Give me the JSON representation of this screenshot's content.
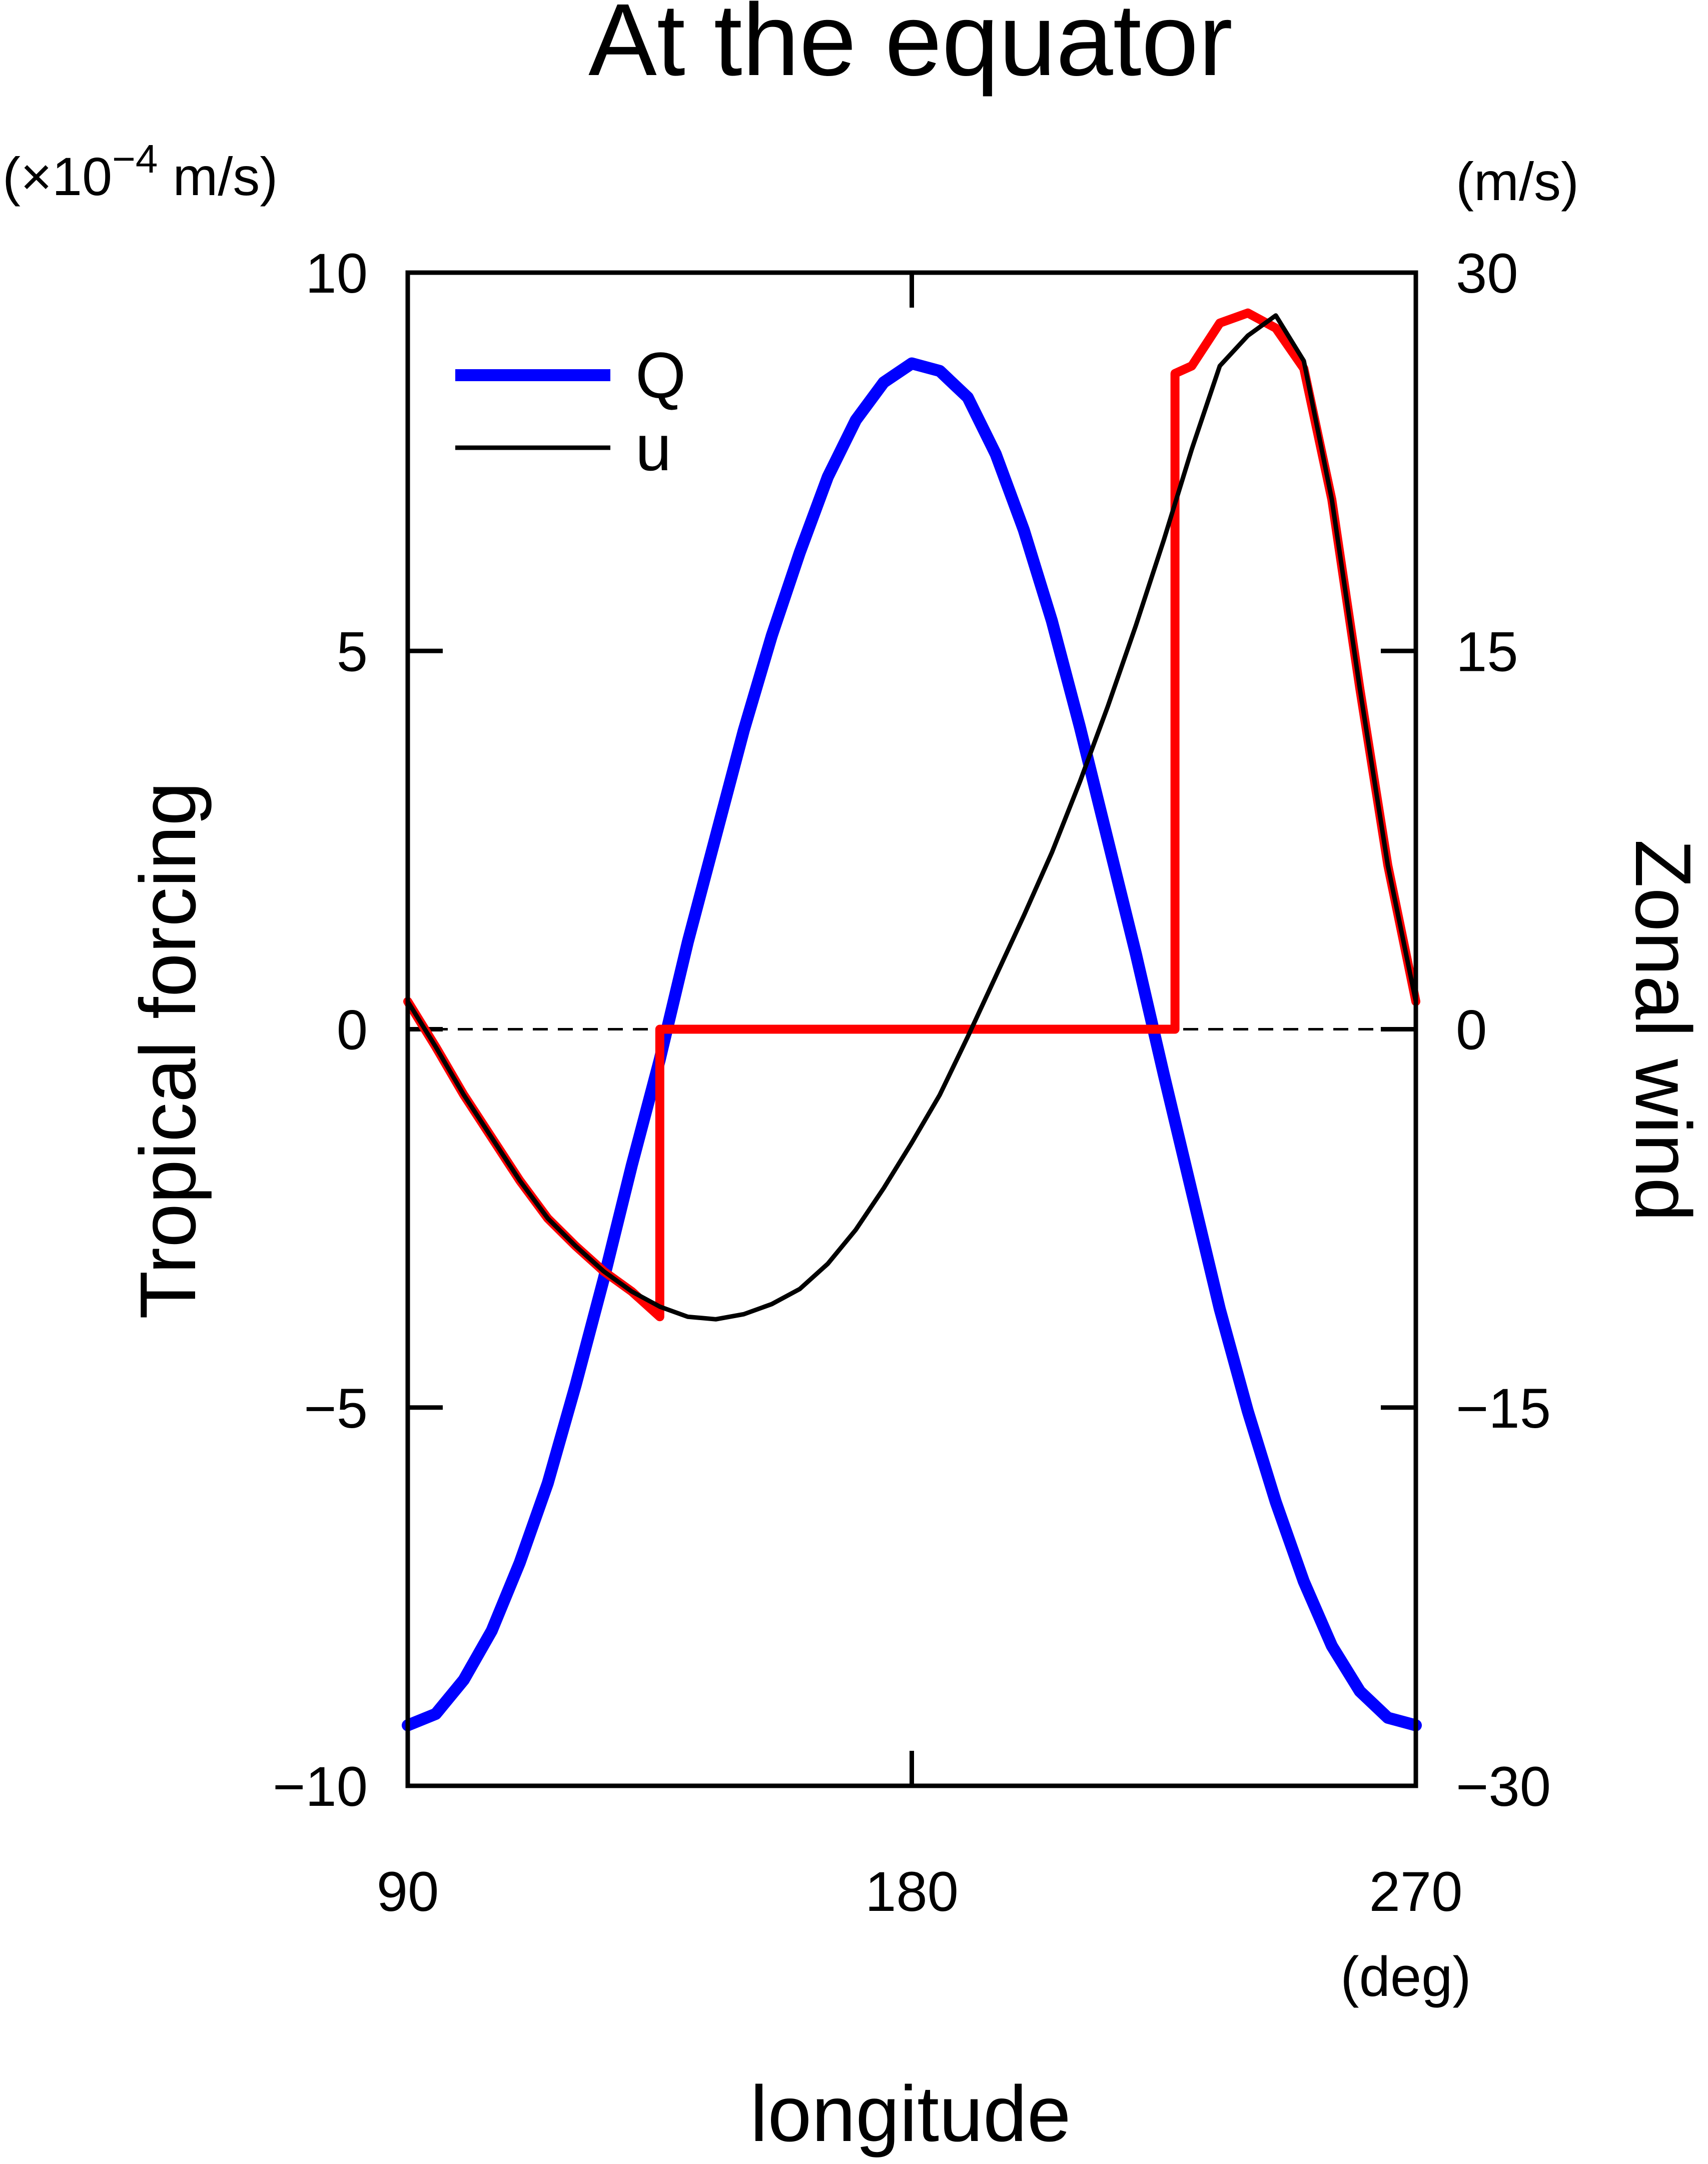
{
  "chart_data": {
    "type": "line",
    "title": "At the equator",
    "xlabel": "longitude",
    "x_unit": "(deg)",
    "ylabel_left": "Tropical forcing",
    "ylabel_right": "Zonal wind",
    "unit_left_prefix": "(×10",
    "unit_left_exp": "−4",
    "unit_left_suffix": " m/s)",
    "unit_right": "(m/s)",
    "xlim": [
      90,
      270
    ],
    "ylim_left": [
      -10,
      10
    ],
    "ylim_right": [
      -30,
      30
    ],
    "x_ticks": [
      90,
      180,
      270
    ],
    "x_tick_labels": [
      "90",
      "180",
      "270"
    ],
    "y_left_ticks": [
      10,
      5,
      0,
      -5,
      -10
    ],
    "y_left_tick_labels": [
      "10",
      "5",
      "0",
      "−5",
      "−10"
    ],
    "y_right_ticks": [
      30,
      15,
      0,
      -15,
      -30
    ],
    "y_right_tick_labels": [
      "30",
      "15",
      "0",
      "−15",
      "−30"
    ],
    "grid": false,
    "zero_line": "dashed",
    "legend_position": "top-left",
    "series": [
      {
        "name": "Q",
        "axis": "left",
        "color": "#0000ff",
        "x": [
          90,
          95,
          100,
          105,
          110,
          115,
          120,
          125,
          130,
          135,
          140,
          145,
          150,
          155,
          160,
          165,
          170,
          175,
          180,
          185,
          190,
          195,
          200,
          205,
          210,
          215,
          220,
          225,
          230,
          235,
          240,
          245,
          250,
          255,
          260,
          265,
          270
        ],
        "values": [
          -9.2,
          -9.05,
          -8.6,
          -7.95,
          -7.05,
          -6.0,
          -4.7,
          -3.3,
          -1.8,
          -0.4,
          1.15,
          2.55,
          3.95,
          5.2,
          6.3,
          7.3,
          8.05,
          8.55,
          8.8,
          8.7,
          8.35,
          7.6,
          6.6,
          5.4,
          4.0,
          2.5,
          1.0,
          -0.6,
          -2.15,
          -3.7,
          -5.05,
          -6.25,
          -7.3,
          -8.15,
          -8.75,
          -9.1,
          -9.2
        ]
      },
      {
        "name": "u",
        "axis": "right",
        "color": "#000000",
        "x": [
          90,
          95,
          100,
          105,
          110,
          115,
          120,
          125,
          130,
          135,
          140,
          145,
          150,
          155,
          160,
          165,
          170,
          175,
          180,
          185,
          190,
          195,
          200,
          205,
          210,
          215,
          220,
          225,
          230,
          235,
          240,
          245,
          250,
          255,
          260,
          265,
          270
        ],
        "values": [
          1.1,
          -0.7,
          -2.6,
          -4.3,
          -6.0,
          -7.5,
          -8.6,
          -9.6,
          -10.4,
          -11.0,
          -11.4,
          -11.5,
          -11.3,
          -10.9,
          -10.3,
          -9.3,
          -7.95,
          -6.3,
          -4.5,
          -2.6,
          -0.3,
          2.1,
          4.5,
          7.0,
          9.8,
          12.8,
          16.0,
          19.4,
          23.0,
          26.3,
          27.5,
          28.3,
          26.5,
          21.0,
          13.5,
          6.5,
          1.1
        ]
      },
      {
        "name": "",
        "axis": "right",
        "color": "#ff0000",
        "x": [
          90,
          95,
          100,
          105,
          110,
          115,
          120,
          125,
          130,
          135,
          135,
          140,
          145,
          150,
          155,
          160,
          165,
          170,
          175,
          180,
          185,
          190,
          195,
          200,
          205,
          210,
          215,
          220,
          225,
          227,
          227,
          230,
          235,
          240,
          245,
          250,
          255,
          260,
          265,
          270
        ],
        "values": [
          1.1,
          -0.7,
          -2.6,
          -4.3,
          -6.0,
          -7.5,
          -8.6,
          -9.6,
          -10.4,
          -11.4,
          0,
          0,
          0,
          0,
          0,
          0,
          0,
          0,
          0,
          0,
          0,
          0,
          0,
          0,
          0,
          0,
          0,
          0,
          0,
          0,
          26.0,
          26.3,
          28.0,
          28.4,
          27.8,
          26.2,
          21.0,
          13.5,
          6.5,
          1.1
        ]
      }
    ]
  }
}
